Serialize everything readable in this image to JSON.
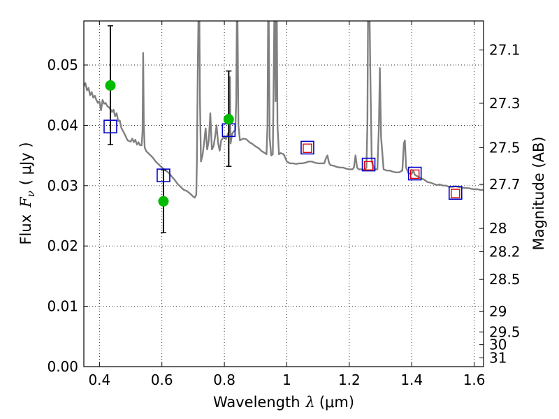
{
  "chart_data": {
    "type": "scatter",
    "xlabel_prefix": "Wavelength",
    "xlabel_symbol": "λ",
    "xlabel_unit": "(μm)",
    "ylabel_prefix": "Flux",
    "ylabel_symbol": "F",
    "ylabel_symbol_sub": "ν",
    "ylabel_unit": "( μJy )",
    "y2label": "Magnitude (AB)",
    "xlim": [
      0.35,
      1.63
    ],
    "ylim": [
      0.0,
      0.0573
    ],
    "grid": true,
    "x_ticks": [
      {
        "value": 0.4,
        "label": "0.4"
      },
      {
        "value": 0.6,
        "label": "0.6"
      },
      {
        "value": 0.8,
        "label": "0.8"
      },
      {
        "value": 1.0,
        "label": "1"
      },
      {
        "value": 1.2,
        "label": "1.2"
      },
      {
        "value": 1.4,
        "label": "1.4"
      },
      {
        "value": 1.6,
        "label": "1.6"
      }
    ],
    "y_ticks": [
      {
        "value": 0.0,
        "label": "0.00"
      },
      {
        "value": 0.01,
        "label": "0.01"
      },
      {
        "value": 0.02,
        "label": "0.02"
      },
      {
        "value": 0.03,
        "label": "0.03"
      },
      {
        "value": 0.04,
        "label": "0.04"
      },
      {
        "value": 0.05,
        "label": "0.05"
      }
    ],
    "magnitude_ticks": [
      {
        "value": 27.1,
        "label": "27.1"
      },
      {
        "value": 27.3,
        "label": "27.3"
      },
      {
        "value": 27.5,
        "label": "27.5"
      },
      {
        "value": 27.7,
        "label": "27.7"
      },
      {
        "value": 28.0,
        "label": "28"
      },
      {
        "value": 28.2,
        "label": "28.2"
      },
      {
        "value": 28.5,
        "label": "28.5"
      },
      {
        "value": 29.0,
        "label": "29"
      },
      {
        "value": 29.5,
        "label": "29.5"
      },
      {
        "value": 30.0,
        "label": "30"
      },
      {
        "value": 31.0,
        "label": "31"
      }
    ],
    "model_spectrum": {
      "color": "#808080",
      "points": [
        [
          0.35,
          0.0465
        ],
        [
          0.355,
          0.047
        ],
        [
          0.36,
          0.0458
        ],
        [
          0.365,
          0.0462
        ],
        [
          0.37,
          0.045
        ],
        [
          0.375,
          0.0455
        ],
        [
          0.38,
          0.0446
        ],
        [
          0.385,
          0.0449
        ],
        [
          0.39,
          0.0442
        ],
        [
          0.395,
          0.0437
        ],
        [
          0.4,
          0.044
        ],
        [
          0.405,
          0.0425
        ],
        [
          0.41,
          0.0442
        ],
        [
          0.415,
          0.0436
        ],
        [
          0.42,
          0.0437
        ],
        [
          0.425,
          0.0432
        ],
        [
          0.43,
          0.043
        ],
        [
          0.435,
          0.0427
        ],
        [
          0.44,
          0.0422
        ],
        [
          0.445,
          0.0426
        ],
        [
          0.45,
          0.0415
        ],
        [
          0.455,
          0.042
        ],
        [
          0.46,
          0.0407
        ],
        [
          0.465,
          0.0408
        ],
        [
          0.47,
          0.0396
        ],
        [
          0.48,
          0.0386
        ],
        [
          0.49,
          0.0375
        ],
        [
          0.5,
          0.0373
        ],
        [
          0.505,
          0.0378
        ],
        [
          0.51,
          0.0372
        ],
        [
          0.515,
          0.0376
        ],
        [
          0.52,
          0.0368
        ],
        [
          0.525,
          0.0372
        ],
        [
          0.53,
          0.0367
        ],
        [
          0.535,
          0.0367
        ],
        [
          0.538,
          0.039
        ],
        [
          0.54,
          0.052
        ],
        [
          0.542,
          0.04
        ],
        [
          0.545,
          0.0363
        ],
        [
          0.55,
          0.0357
        ],
        [
          0.56,
          0.0352
        ],
        [
          0.57,
          0.0347
        ],
        [
          0.58,
          0.034
        ],
        [
          0.59,
          0.0335
        ],
        [
          0.6,
          0.033
        ],
        [
          0.61,
          0.0326
        ],
        [
          0.62,
          0.0322
        ],
        [
          0.63,
          0.0316
        ],
        [
          0.64,
          0.031
        ],
        [
          0.65,
          0.0303
        ],
        [
          0.66,
          0.0298
        ],
        [
          0.67,
          0.0293
        ],
        [
          0.68,
          0.0291
        ],
        [
          0.69,
          0.0287
        ],
        [
          0.7,
          0.0282
        ],
        [
          0.705,
          0.028
        ],
        [
          0.71,
          0.0285
        ],
        [
          0.712,
          0.034
        ],
        [
          0.715,
          0.05
        ],
        [
          0.717,
          0.058
        ],
        [
          0.72,
          0.058
        ],
        [
          0.722,
          0.044
        ],
        [
          0.725,
          0.034
        ],
        [
          0.73,
          0.035
        ],
        [
          0.735,
          0.037
        ],
        [
          0.74,
          0.0395
        ],
        [
          0.745,
          0.036
        ],
        [
          0.75,
          0.0375
        ],
        [
          0.755,
          0.042
        ],
        [
          0.76,
          0.036
        ],
        [
          0.765,
          0.0365
        ],
        [
          0.77,
          0.038
        ],
        [
          0.775,
          0.04
        ],
        [
          0.78,
          0.037
        ],
        [
          0.785,
          0.0358
        ],
        [
          0.79,
          0.0375
        ],
        [
          0.8,
          0.0382
        ],
        [
          0.805,
          0.0377
        ],
        [
          0.81,
          0.0384
        ],
        [
          0.815,
          0.039
        ],
        [
          0.818,
          0.048
        ],
        [
          0.82,
          0.037
        ],
        [
          0.825,
          0.0386
        ],
        [
          0.83,
          0.039
        ],
        [
          0.835,
          0.0392
        ],
        [
          0.838,
          0.044
        ],
        [
          0.84,
          0.058
        ],
        [
          0.842,
          0.058
        ],
        [
          0.845,
          0.04
        ],
        [
          0.85,
          0.0375
        ],
        [
          0.86,
          0.0378
        ],
        [
          0.87,
          0.0377
        ],
        [
          0.88,
          0.0372
        ],
        [
          0.89,
          0.0369
        ],
        [
          0.9,
          0.0365
        ],
        [
          0.91,
          0.0362
        ],
        [
          0.92,
          0.0357
        ],
        [
          0.93,
          0.0354
        ],
        [
          0.935,
          0.0352
        ],
        [
          0.938,
          0.04
        ],
        [
          0.94,
          0.058
        ],
        [
          0.942,
          0.058
        ],
        [
          0.945,
          0.038
        ],
        [
          0.95,
          0.035
        ],
        [
          0.955,
          0.0352
        ],
        [
          0.958,
          0.048
        ],
        [
          0.96,
          0.058
        ],
        [
          0.962,
          0.058
        ],
        [
          0.964,
          0.044
        ],
        [
          0.966,
          0.058
        ],
        [
          0.968,
          0.058
        ],
        [
          0.97,
          0.04
        ],
        [
          0.975,
          0.0352
        ],
        [
          0.98,
          0.0354
        ],
        [
          0.99,
          0.0352
        ],
        [
          1.0,
          0.034
        ],
        [
          1.01,
          0.0337
        ],
        [
          1.02,
          0.0337
        ],
        [
          1.03,
          0.0336
        ],
        [
          1.04,
          0.0337
        ],
        [
          1.05,
          0.0337
        ],
        [
          1.06,
          0.0338
        ],
        [
          1.07,
          0.034
        ],
        [
          1.08,
          0.034
        ],
        [
          1.09,
          0.0338
        ],
        [
          1.1,
          0.0337
        ],
        [
          1.11,
          0.0337
        ],
        [
          1.12,
          0.0337
        ],
        [
          1.125,
          0.0345
        ],
        [
          1.13,
          0.035
        ],
        [
          1.135,
          0.0338
        ],
        [
          1.14,
          0.0334
        ],
        [
          1.15,
          0.0333
        ],
        [
          1.16,
          0.0331
        ],
        [
          1.17,
          0.033
        ],
        [
          1.18,
          0.033
        ],
        [
          1.19,
          0.0328
        ],
        [
          1.2,
          0.0327
        ],
        [
          1.21,
          0.0327
        ],
        [
          1.215,
          0.033
        ],
        [
          1.22,
          0.035
        ],
        [
          1.225,
          0.033
        ],
        [
          1.23,
          0.0327
        ],
        [
          1.24,
          0.0327
        ],
        [
          1.25,
          0.0326
        ],
        [
          1.255,
          0.033
        ],
        [
          1.258,
          0.04
        ],
        [
          1.26,
          0.058
        ],
        [
          1.265,
          0.058
        ],
        [
          1.268,
          0.047
        ],
        [
          1.272,
          0.034
        ],
        [
          1.28,
          0.0327
        ],
        [
          1.29,
          0.0327
        ],
        [
          1.295,
          0.04
        ],
        [
          1.298,
          0.0495
        ],
        [
          1.302,
          0.038
        ],
        [
          1.31,
          0.0327
        ],
        [
          1.32,
          0.0325
        ],
        [
          1.33,
          0.0325
        ],
        [
          1.34,
          0.0323
        ],
        [
          1.35,
          0.0322
        ],
        [
          1.36,
          0.0322
        ],
        [
          1.37,
          0.0325
        ],
        [
          1.375,
          0.037
        ],
        [
          1.378,
          0.0375
        ],
        [
          1.382,
          0.033
        ],
        [
          1.39,
          0.032
        ],
        [
          1.4,
          0.032
        ],
        [
          1.405,
          0.0325
        ],
        [
          1.41,
          0.0318
        ],
        [
          1.42,
          0.0315
        ],
        [
          1.43,
          0.0312
        ],
        [
          1.44,
          0.031
        ],
        [
          1.45,
          0.0306
        ],
        [
          1.46,
          0.0305
        ],
        [
          1.47,
          0.0303
        ],
        [
          1.48,
          0.0301
        ],
        [
          1.49,
          0.0302
        ],
        [
          1.5,
          0.03
        ],
        [
          1.51,
          0.03
        ],
        [
          1.52,
          0.0298
        ],
        [
          1.53,
          0.0298
        ],
        [
          1.54,
          0.0299
        ],
        [
          1.55,
          0.0298
        ],
        [
          1.56,
          0.0297
        ],
        [
          1.57,
          0.0296
        ],
        [
          1.58,
          0.0296
        ],
        [
          1.59,
          0.0295
        ],
        [
          1.6,
          0.0294
        ],
        [
          1.61,
          0.0294
        ],
        [
          1.62,
          0.0293
        ],
        [
          1.63,
          0.0293
        ]
      ]
    },
    "observed": {
      "color": "#00bb00",
      "points": [
        {
          "x": 0.435,
          "y": 0.0466,
          "yerr_low": 0.0368,
          "yerr_high": 0.0565
        },
        {
          "x": 0.605,
          "y": 0.0274,
          "yerr_low": 0.0222,
          "yerr_high": 0.0326
        },
        {
          "x": 0.814,
          "y": 0.041,
          "yerr_low": 0.0332,
          "yerr_high": 0.049
        }
      ]
    },
    "model_photometry": {
      "color": "#0000cc",
      "points": [
        {
          "x": 0.435,
          "y": 0.0398
        },
        {
          "x": 0.605,
          "y": 0.0317
        },
        {
          "x": 0.814,
          "y": 0.0392
        },
        {
          "x": 1.066,
          "y": 0.0363
        },
        {
          "x": 1.262,
          "y": 0.0335
        },
        {
          "x": 1.41,
          "y": 0.032
        },
        {
          "x": 1.54,
          "y": 0.0288
        }
      ]
    },
    "ir_photometry": {
      "color": "#dd0000",
      "points": [
        {
          "x": 1.066,
          "y": 0.0362
        },
        {
          "x": 1.262,
          "y": 0.0333
        },
        {
          "x": 1.41,
          "y": 0.0319
        },
        {
          "x": 1.54,
          "y": 0.0287
        }
      ]
    }
  }
}
